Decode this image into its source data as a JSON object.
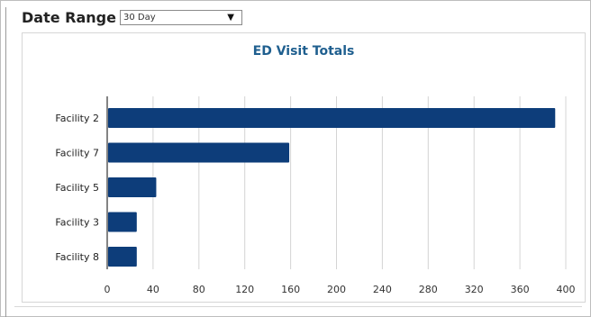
{
  "header": {
    "date_range_label": "Date Range",
    "date_range_value": "30 Day",
    "dropdown_arrow": "▼"
  },
  "chart_data": {
    "type": "bar",
    "orientation": "horizontal",
    "title": "ED Visit Totals",
    "categories": [
      "Facility 2",
      "Facility 7",
      "Facility 5",
      "Facility 3",
      "Facility 8"
    ],
    "values": [
      390,
      158,
      42,
      25,
      25
    ],
    "xlim": [
      0,
      400
    ],
    "xticks": [
      0,
      40,
      80,
      120,
      160,
      200,
      240,
      280,
      320,
      360,
      400
    ],
    "grid": true,
    "bar_color": "#0d3d7a",
    "title_color": "#1f5f8f"
  }
}
